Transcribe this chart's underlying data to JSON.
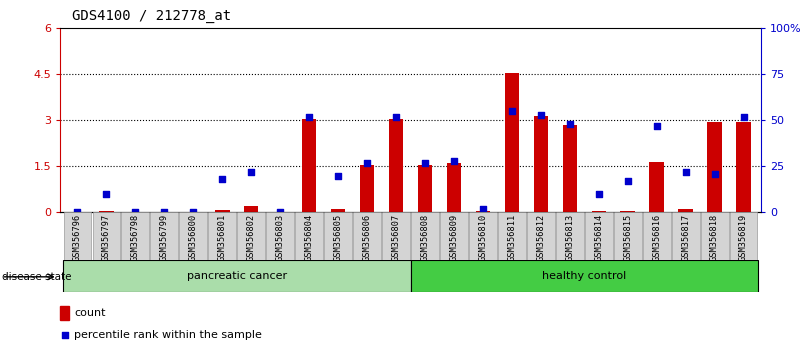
{
  "title": "GDS4100 / 212778_at",
  "samples": [
    "GSM356796",
    "GSM356797",
    "GSM356798",
    "GSM356799",
    "GSM356800",
    "GSM356801",
    "GSM356802",
    "GSM356803",
    "GSM356804",
    "GSM356805",
    "GSM356806",
    "GSM356807",
    "GSM356808",
    "GSM356809",
    "GSM356810",
    "GSM356811",
    "GSM356812",
    "GSM356813",
    "GSM356814",
    "GSM356815",
    "GSM356816",
    "GSM356817",
    "GSM356818",
    "GSM356819"
  ],
  "counts": [
    0.0,
    0.05,
    0.0,
    0.0,
    0.0,
    0.08,
    0.2,
    0.0,
    3.05,
    0.1,
    1.55,
    3.05,
    1.55,
    1.6,
    0.05,
    4.55,
    3.15,
    2.85,
    0.05,
    0.05,
    1.65,
    0.1,
    2.95,
    2.95
  ],
  "percentiles": [
    0,
    10,
    0,
    0,
    0,
    18,
    22,
    0,
    52,
    20,
    27,
    52,
    27,
    28,
    2,
    55,
    53,
    48,
    10,
    17,
    47,
    22,
    21,
    52
  ],
  "groups": [
    "pancreatic cancer",
    "pancreatic cancer",
    "pancreatic cancer",
    "pancreatic cancer",
    "pancreatic cancer",
    "pancreatic cancer",
    "pancreatic cancer",
    "pancreatic cancer",
    "pancreatic cancer",
    "pancreatic cancer",
    "pancreatic cancer",
    "pancreatic cancer",
    "healthy control",
    "healthy control",
    "healthy control",
    "healthy control",
    "healthy control",
    "healthy control",
    "healthy control",
    "healthy control",
    "healthy control",
    "healthy control",
    "healthy control",
    "healthy control"
  ],
  "group_colors": {
    "pancreatic cancer": "#aaddaa",
    "healthy control": "#44cc44"
  },
  "bar_color": "#CC0000",
  "dot_color": "#0000CC",
  "ylim_left": [
    0,
    6
  ],
  "ylim_right": [
    0,
    100
  ],
  "yticks_left": [
    0,
    1.5,
    3.0,
    4.5,
    6
  ],
  "yticks_right": [
    0,
    25,
    50,
    75,
    100
  ],
  "yticklabels_left": [
    "0",
    "1.5",
    "3",
    "4.5",
    "6"
  ],
  "yticklabels_right": [
    "0",
    "25",
    "50",
    "75",
    "100%"
  ],
  "title_fontsize": 10,
  "disease_state_label": "disease state",
  "legend_count_label": "count",
  "legend_pct_label": "percentile rank within the sample"
}
